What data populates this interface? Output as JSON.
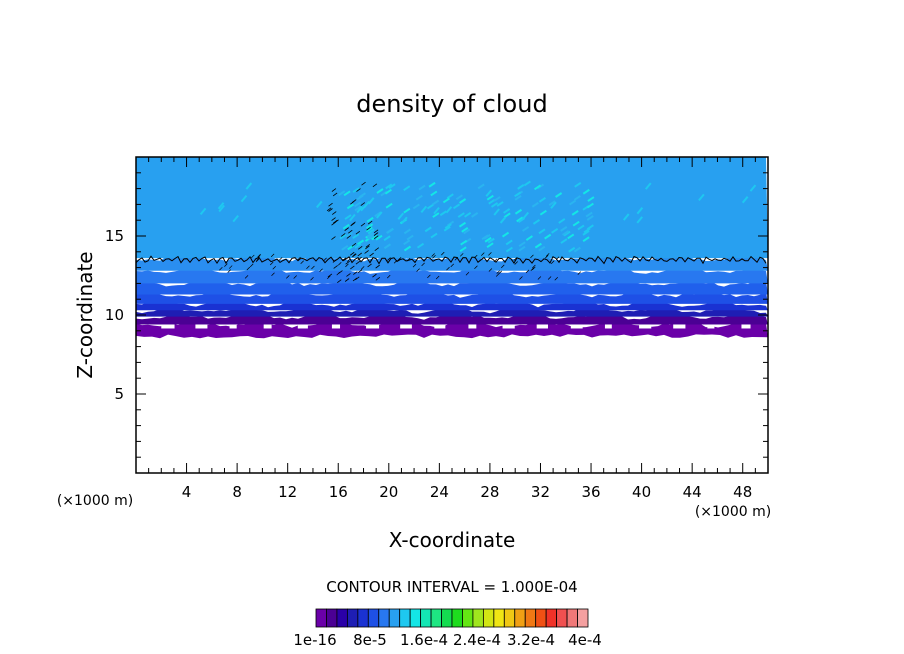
{
  "chart_data": {
    "type": "heatmap",
    "title": "density of cloud",
    "xlabel": "X-coordinate",
    "ylabel": "Z-coordinate",
    "x_unit_label": "(×1000 m)",
    "y_unit_label": "(×1000 m)",
    "xlim": [
      0,
      50
    ],
    "ylim": [
      0,
      20
    ],
    "x_ticks": [
      4,
      8,
      12,
      16,
      20,
      24,
      28,
      32,
      36,
      40,
      44,
      48
    ],
    "y_ticks": [
      5,
      10,
      15
    ],
    "contour_interval_text": "CONTOUR INTERVAL = 1.000E-04",
    "contour_line_level": 13.5,
    "cloud_base_z": 8.8,
    "cloud_top_z": 18.5,
    "colorbar": {
      "colors": [
        "#6a00a8",
        "#4b0094",
        "#2a00a8",
        "#1e1eb4",
        "#1a32d2",
        "#1e50e6",
        "#2878f0",
        "#28a0f0",
        "#1ec8f0",
        "#14e6e6",
        "#14e6b4",
        "#1ee682",
        "#14dc50",
        "#1edc1e",
        "#64e614",
        "#a0e61e",
        "#d2e614",
        "#f0e614",
        "#f0c814",
        "#f0a014",
        "#f07814",
        "#f05014",
        "#f03228",
        "#f05050",
        "#f07878",
        "#f4a0a0"
      ],
      "tick_labels": [
        "1e-16",
        "8e-5",
        "1.6e-4",
        "2.4e-4",
        "3.2e-4",
        "4e-4"
      ]
    }
  }
}
